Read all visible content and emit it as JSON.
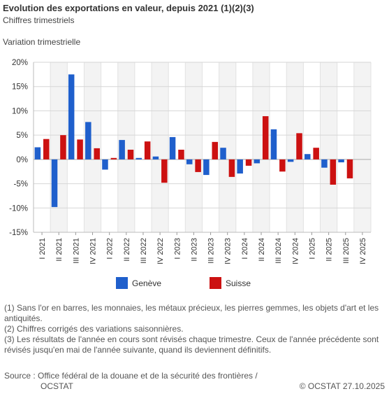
{
  "header": {
    "title": "Evolution des exportations en valeur, depuis 2021 (1)(2)(3)",
    "subtitle": "Chiffres trimestriels",
    "axis_caption": "Variation trimestrielle"
  },
  "legend": {
    "items": [
      {
        "label": "Genève",
        "color": "#1f5fcc"
      },
      {
        "label": "Suisse",
        "color": "#cc1111"
      }
    ]
  },
  "notes": [
    "(1) Sans l'or en barres, les monnaies, les métaux précieux, les pierres gemmes, les objets d'art et les antiquités.",
    "(2) Chiffres corrigés des variations saisonnières.",
    "(3) Les résultats de l'année en cours sont révisés chaque trimestre. Ceux de l'année précédente sont révisés jusqu'en mai de l'année suivante, quand ils deviennent définitifs."
  ],
  "footer": {
    "source_line1": "Source : Office fédéral de la douane et de la sécurité des frontières /",
    "source_line2": "OCSTAT",
    "copyright": "© OCSTAT 27.10.2025"
  },
  "chart_data": {
    "type": "bar",
    "categories": [
      "I 2021",
      "II 2021",
      "III 2021",
      "IV 2021",
      "I 2022",
      "II 2022",
      "III 2022",
      "IV 2022",
      "I 2023",
      "II 2023",
      "III 2023",
      "IV 2023",
      "I 2024",
      "II 2024",
      "III 2024",
      "IV 2024",
      "I 2025",
      "II 2025",
      "III 2025",
      "IV 2025"
    ],
    "series": [
      {
        "name": "Genève",
        "color": "#1f5fcc",
        "values": [
          2.5,
          -9.8,
          17.5,
          7.7,
          -2.1,
          4.0,
          0.3,
          0.6,
          4.6,
          -1.0,
          -3.2,
          2.4,
          -2.9,
          -0.8,
          6.2,
          -0.5,
          1.1,
          -1.7,
          -0.6,
          null
        ]
      },
      {
        "name": "Suisse",
        "color": "#cc1111",
        "values": [
          4.2,
          5.0,
          4.1,
          2.3,
          0.3,
          2.0,
          3.7,
          -4.8,
          2.0,
          -2.6,
          3.6,
          -3.6,
          -1.3,
          8.9,
          -2.5,
          5.4,
          2.4,
          -5.2,
          -3.9,
          null
        ]
      }
    ],
    "ylim": [
      -15,
      20
    ],
    "yticks": [
      -15,
      -10,
      -5,
      0,
      5,
      10,
      15,
      20
    ],
    "ytick_labels": [
      "-15%",
      "-10%",
      "-5%",
      "0%",
      "5%",
      "10%",
      "15%",
      "20%"
    ],
    "grid": true,
    "legend_position": "bottom"
  }
}
